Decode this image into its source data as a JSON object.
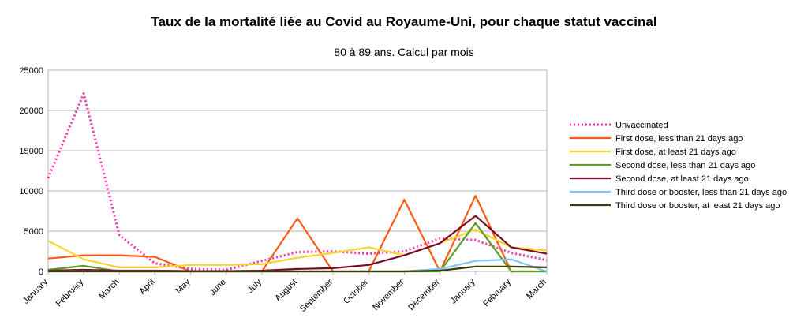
{
  "chart_data": {
    "type": "line",
    "title": "Taux de la mortalité liée au Covid au Royaume-Uni, pour chaque statut vaccinal",
    "subtitle": "80 à 89 ans. Calcul par mois",
    "xlabel": "",
    "ylabel": "",
    "ylim": [
      0,
      25000
    ],
    "yticks": [
      0,
      5000,
      10000,
      15000,
      20000,
      25000
    ],
    "grid": true,
    "legend_position": "right",
    "categories": [
      "January",
      "February",
      "March",
      "April",
      "May",
      "June",
      "July",
      "August",
      "September",
      "October",
      "November",
      "December",
      "January",
      "February",
      "March"
    ],
    "series": [
      {
        "name": "Unvaccinated",
        "color": "#ff2fa8",
        "dash": "dotted",
        "values": [
          11600,
          22100,
          4500,
          1000,
          300,
          200,
          1300,
          2400,
          2500,
          2200,
          2500,
          4100,
          3900,
          2300,
          1400
        ]
      },
      {
        "name": "First dose, less than 21 days ago",
        "color": "#ff5a14",
        "dash": "solid",
        "values": [
          1600,
          2000,
          2000,
          1800,
          0,
          0,
          0,
          6600,
          0,
          0,
          8900,
          0,
          9400,
          0,
          0
        ]
      },
      {
        "name": "First dose, at least 21 days ago",
        "color": "#ffd42a",
        "dash": "solid",
        "values": [
          3800,
          1500,
          500,
          500,
          800,
          800,
          900,
          1700,
          2300,
          3000,
          2000,
          3500,
          5200,
          3000,
          2600
        ]
      },
      {
        "name": "Second dose, less than 21 days ago",
        "color": "#5a9e2a",
        "dash": "solid",
        "values": [
          200,
          700,
          0,
          0,
          0,
          0,
          0,
          0,
          0,
          0,
          0,
          0,
          6000,
          0,
          0
        ]
      },
      {
        "name": "Second dose, at least 21 days ago",
        "color": "#7a0a26",
        "dash": "solid",
        "values": [
          100,
          200,
          100,
          100,
          50,
          50,
          100,
          300,
          400,
          800,
          2000,
          3500,
          6900,
          3000,
          2200
        ]
      },
      {
        "name": "Third dose or booster, less than 21 days ago",
        "color": "#7fc8f5",
        "dash": "solid",
        "values": [
          0,
          0,
          0,
          0,
          0,
          0,
          0,
          0,
          0,
          0,
          0,
          300,
          1300,
          1500,
          0
        ]
      },
      {
        "name": "Third dose or booster, at least 21 days ago",
        "color": "#3d3a08",
        "dash": "solid",
        "values": [
          0,
          0,
          0,
          0,
          0,
          0,
          0,
          0,
          0,
          0,
          0,
          100,
          600,
          600,
          500
        ]
      }
    ]
  }
}
